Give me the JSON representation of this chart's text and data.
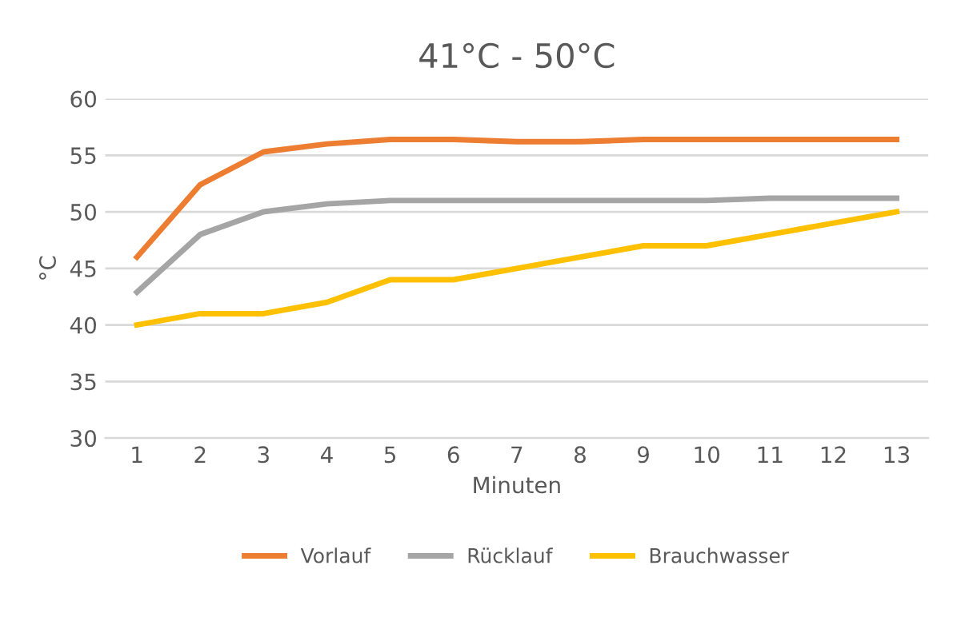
{
  "chart_data": {
    "type": "line",
    "title": "41°C - 50°C",
    "xlabel": "Minuten",
    "ylabel": "°C",
    "categories": [
      "1",
      "2",
      "3",
      "4",
      "5",
      "6",
      "7",
      "8",
      "9",
      "10",
      "11",
      "12",
      "13"
    ],
    "series": [
      {
        "name": "Vorlauf",
        "color": "#ed7d31",
        "values": [
          46.0,
          52.4,
          55.3,
          56.0,
          56.4,
          56.4,
          56.2,
          56.2,
          56.4,
          56.4,
          56.4,
          56.4,
          56.4
        ]
      },
      {
        "name": "Rücklauf",
        "color": "#a5a5a5",
        "values": [
          42.9,
          48.0,
          50.0,
          50.7,
          51.0,
          51.0,
          51.0,
          51.0,
          51.0,
          51.0,
          51.2,
          51.2,
          51.2
        ]
      },
      {
        "name": "Brauchwasser",
        "color": "#ffc000",
        "values": [
          40,
          41,
          41,
          42,
          44,
          44,
          45,
          46,
          47,
          47,
          48,
          49,
          50
        ]
      }
    ],
    "ylim": [
      30,
      60
    ],
    "yticks": [
      30,
      35,
      40,
      45,
      50,
      55,
      60
    ],
    "grid": "y",
    "legend": "bottom",
    "marker": "none",
    "line_style": "solid"
  }
}
